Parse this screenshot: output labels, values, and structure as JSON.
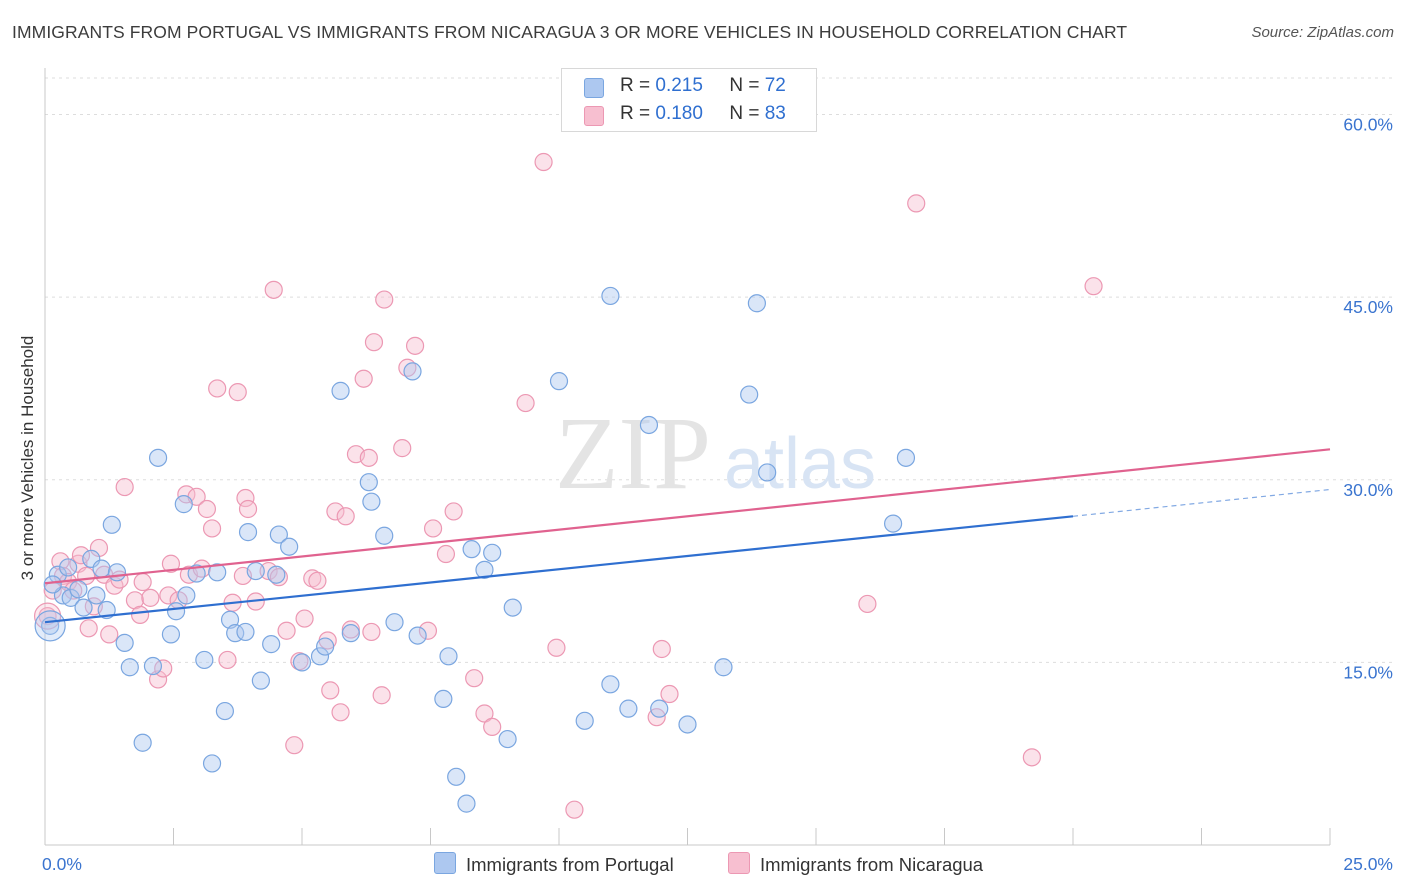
{
  "title": "IMMIGRANTS FROM PORTUGAL VS IMMIGRANTS FROM NICARAGUA 3 OR MORE VEHICLES IN HOUSEHOLD CORRELATION CHART",
  "source": "Source: ZipAtlas.com",
  "watermark": {
    "zip": "ZIP",
    "atlas": "atlas"
  },
  "legend": {
    "series1": {
      "r_label": "R = ",
      "r_value": "0.215",
      "n_label": "N = ",
      "n_value": "72"
    },
    "series2": {
      "r_label": "R = ",
      "r_value": "0.180",
      "n_label": "N = ",
      "n_value": "83"
    }
  },
  "colors": {
    "portugal_fill": "#adc8f0",
    "portugal_stroke": "#7aa6e0",
    "portugal_line": "#2f6fd0",
    "nicaragua_fill": "#f7bfd0",
    "nicaragua_stroke": "#ec98b3",
    "nicaragua_line": "#e0628f",
    "axis_text": "#3a74cf",
    "grid": "#dddddd"
  },
  "chart_data": {
    "type": "scatter",
    "xlabel": "",
    "ylabel": "3 or more Vehicles in Household",
    "xlim": [
      0,
      25
    ],
    "ylim": [
      0,
      63
    ],
    "x_tick_labels": [
      {
        "value": 0,
        "label": "0.0%"
      },
      {
        "value": 25,
        "label": "25.0%"
      }
    ],
    "y_tick_labels": [
      {
        "value": 15,
        "label": "15.0%"
      },
      {
        "value": 30,
        "label": "30.0%"
      },
      {
        "value": 45,
        "label": "45.0%"
      },
      {
        "value": 60,
        "label": "60.0%"
      }
    ],
    "series": [
      {
        "name": "Immigrants from Portugal",
        "r": 0.215,
        "n": 72,
        "trend": {
          "x0": 0,
          "y0": 18.3,
          "x1": 20,
          "y1": 27.0,
          "dashed_to_x": 25,
          "dashed_to_y": 29.2
        },
        "points": [
          [
            0.1,
            18.0
          ],
          [
            0.25,
            22.2
          ],
          [
            0.35,
            20.5
          ],
          [
            0.45,
            22.8
          ],
          [
            0.5,
            20.3
          ],
          [
            0.65,
            21.0
          ],
          [
            0.75,
            19.5
          ],
          [
            0.9,
            23.5
          ],
          [
            1.0,
            20.5
          ],
          [
            1.1,
            22.7
          ],
          [
            1.2,
            19.3
          ],
          [
            1.3,
            26.3
          ],
          [
            1.55,
            16.6
          ],
          [
            1.65,
            14.6
          ],
          [
            1.9,
            8.4
          ],
          [
            2.1,
            14.7
          ],
          [
            2.2,
            31.8
          ],
          [
            2.45,
            17.3
          ],
          [
            2.55,
            19.2
          ],
          [
            2.7,
            28.0
          ],
          [
            2.75,
            20.5
          ],
          [
            2.95,
            22.3
          ],
          [
            3.1,
            15.2
          ],
          [
            3.25,
            6.7
          ],
          [
            3.35,
            22.4
          ],
          [
            3.5,
            11.0
          ],
          [
            3.6,
            18.5
          ],
          [
            3.7,
            17.4
          ],
          [
            3.9,
            17.5
          ],
          [
            3.95,
            25.7
          ],
          [
            4.1,
            22.5
          ],
          [
            4.2,
            13.5
          ],
          [
            4.4,
            16.5
          ],
          [
            4.5,
            22.2
          ],
          [
            4.55,
            25.5
          ],
          [
            4.75,
            24.5
          ],
          [
            5.0,
            15.0
          ],
          [
            5.35,
            15.5
          ],
          [
            5.45,
            16.3
          ],
          [
            5.95,
            17.4
          ],
          [
            5.75,
            37.3
          ],
          [
            6.3,
            29.8
          ],
          [
            6.35,
            28.2
          ],
          [
            6.6,
            25.4
          ],
          [
            6.8,
            18.3
          ],
          [
            7.15,
            38.9
          ],
          [
            7.25,
            17.2
          ],
          [
            7.85,
            15.5
          ],
          [
            7.75,
            12.0
          ],
          [
            8.0,
            5.6
          ],
          [
            8.2,
            3.4
          ],
          [
            8.3,
            24.3
          ],
          [
            8.55,
            22.6
          ],
          [
            8.7,
            24.0
          ],
          [
            9.0,
            8.7
          ],
          [
            9.1,
            19.5
          ],
          [
            10.0,
            38.1
          ],
          [
            10.5,
            10.2
          ],
          [
            11.0,
            13.2
          ],
          [
            11.0,
            45.1
          ],
          [
            11.35,
            11.2
          ],
          [
            11.75,
            34.5
          ],
          [
            11.95,
            11.2
          ],
          [
            12.5,
            9.9
          ],
          [
            13.2,
            14.6
          ],
          [
            13.7,
            37.0
          ],
          [
            13.85,
            44.5
          ],
          [
            14.05,
            30.6
          ],
          [
            16.5,
            26.4
          ],
          [
            16.75,
            31.8
          ],
          [
            0.15,
            21.4
          ],
          [
            1.4,
            22.4
          ]
        ]
      },
      {
        "name": "Immigrants from Nicaragua",
        "r": 0.18,
        "n": 83,
        "trend": {
          "x0": 0,
          "y0": 21.5,
          "x1": 25,
          "y1": 32.5
        },
        "points": [
          [
            0.05,
            18.8
          ],
          [
            0.15,
            20.9
          ],
          [
            0.3,
            23.3
          ],
          [
            0.35,
            22.1
          ],
          [
            0.45,
            21.6
          ],
          [
            0.55,
            20.9
          ],
          [
            0.65,
            23.1
          ],
          [
            0.7,
            23.8
          ],
          [
            0.8,
            22.1
          ],
          [
            0.85,
            17.8
          ],
          [
            0.95,
            19.6
          ],
          [
            1.05,
            24.4
          ],
          [
            1.15,
            22.2
          ],
          [
            1.25,
            17.3
          ],
          [
            1.35,
            21.3
          ],
          [
            1.45,
            21.8
          ],
          [
            1.55,
            29.4
          ],
          [
            1.75,
            20.1
          ],
          [
            1.85,
            18.9
          ],
          [
            1.9,
            21.6
          ],
          [
            2.05,
            20.3
          ],
          [
            2.2,
            13.6
          ],
          [
            2.3,
            14.5
          ],
          [
            2.4,
            20.5
          ],
          [
            2.45,
            23.1
          ],
          [
            2.6,
            20.1
          ],
          [
            2.75,
            28.8
          ],
          [
            2.8,
            22.2
          ],
          [
            2.95,
            28.6
          ],
          [
            3.05,
            22.7
          ],
          [
            3.15,
            27.6
          ],
          [
            3.25,
            26.0
          ],
          [
            3.35,
            37.5
          ],
          [
            3.55,
            15.2
          ],
          [
            3.65,
            19.9
          ],
          [
            3.75,
            37.2
          ],
          [
            3.85,
            22.1
          ],
          [
            3.9,
            28.5
          ],
          [
            3.95,
            27.6
          ],
          [
            4.1,
            20.0
          ],
          [
            4.35,
            22.5
          ],
          [
            4.45,
            45.6
          ],
          [
            4.55,
            22.0
          ],
          [
            4.7,
            17.6
          ],
          [
            4.85,
            8.2
          ],
          [
            4.95,
            15.1
          ],
          [
            5.05,
            18.6
          ],
          [
            5.2,
            21.9
          ],
          [
            5.3,
            21.7
          ],
          [
            5.5,
            16.8
          ],
          [
            5.55,
            12.7
          ],
          [
            5.65,
            27.4
          ],
          [
            5.75,
            10.9
          ],
          [
            5.85,
            27.0
          ],
          [
            5.95,
            17.7
          ],
          [
            6.05,
            32.1
          ],
          [
            6.2,
            38.3
          ],
          [
            6.3,
            31.8
          ],
          [
            6.35,
            17.5
          ],
          [
            6.4,
            41.3
          ],
          [
            6.55,
            12.3
          ],
          [
            6.6,
            44.8
          ],
          [
            6.95,
            32.6
          ],
          [
            7.05,
            39.2
          ],
          [
            7.2,
            41.0
          ],
          [
            7.45,
            17.6
          ],
          [
            7.55,
            26.0
          ],
          [
            7.8,
            23.9
          ],
          [
            7.95,
            27.4
          ],
          [
            8.35,
            13.7
          ],
          [
            8.55,
            10.8
          ],
          [
            8.7,
            9.7
          ],
          [
            9.35,
            36.3
          ],
          [
            9.7,
            56.1
          ],
          [
            9.95,
            16.2
          ],
          [
            10.3,
            2.9
          ],
          [
            11.9,
            10.5
          ],
          [
            12.15,
            12.4
          ],
          [
            12.0,
            16.1
          ],
          [
            16.0,
            19.8
          ],
          [
            16.95,
            52.7
          ],
          [
            19.2,
            7.2
          ],
          [
            20.4,
            45.9
          ]
        ]
      }
    ]
  },
  "bottom_legend": {
    "item1": "Immigrants from Portugal",
    "item2": "Immigrants from Nicaragua"
  }
}
